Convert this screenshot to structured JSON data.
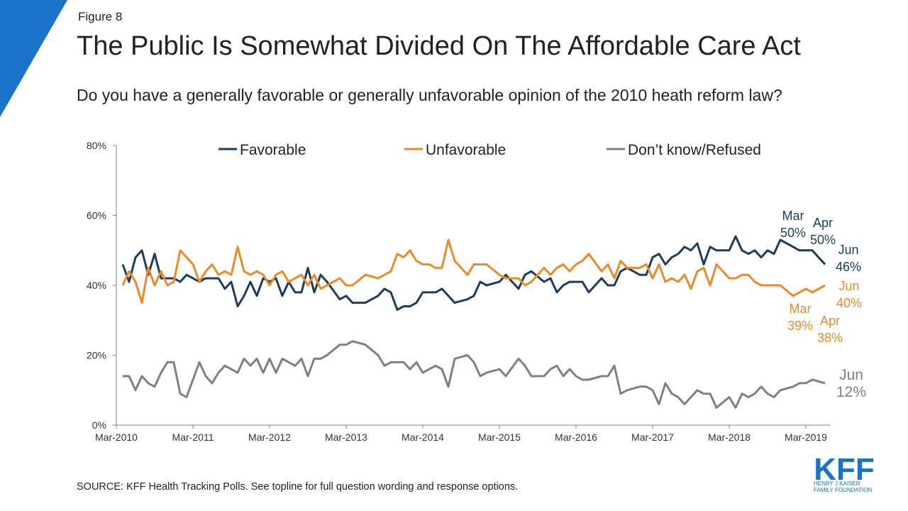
{
  "chart_data": {
    "type": "line",
    "figure_label": "Figure 8",
    "title": "The Public Is Somewhat Divided On The Affordable Care Act",
    "subtitle": "Do you have a generally favorable or generally unfavorable opinion of the 2010 heath reform law?",
    "source": "SOURCE: KFF Health Tracking Polls. See topline for full question wording and response options.",
    "logo": {
      "name": "KFF",
      "line1": "HENRY J KAISER",
      "line2": "FAMILY FOUNDATION"
    },
    "x": [
      "2010-04",
      "2010-05",
      "2010-06",
      "2010-07",
      "2010-08",
      "2010-09",
      "2010-10",
      "2010-11",
      "2010-12",
      "2011-01",
      "2011-02",
      "2011-03",
      "2011-04",
      "2011-05",
      "2011-06",
      "2011-07",
      "2011-08",
      "2011-09",
      "2011-10",
      "2011-11",
      "2011-12",
      "2012-01",
      "2012-02",
      "2012-03",
      "2012-04",
      "2012-05",
      "2012-06",
      "2012-07",
      "2012-08",
      "2012-09",
      "2012-10",
      "2012-11",
      "2012-12",
      "2013-02",
      "2013-03",
      "2013-04",
      "2013-06",
      "2013-08",
      "2013-09",
      "2013-10",
      "2013-11",
      "2013-12",
      "2014-01",
      "2014-02",
      "2014-03",
      "2014-04",
      "2014-05",
      "2014-06",
      "2014-07",
      "2014-08",
      "2014-10",
      "2014-11",
      "2014-12",
      "2015-01",
      "2015-03",
      "2015-04",
      "2015-06",
      "2015-07",
      "2015-08",
      "2015-10",
      "2015-11",
      "2015-12",
      "2016-01",
      "2016-02",
      "2016-03",
      "2016-04",
      "2016-05",
      "2016-07",
      "2016-08",
      "2016-09",
      "2016-10",
      "2016-11",
      "2017-01",
      "2017-02",
      "2017-03",
      "2017-04",
      "2017-05",
      "2017-06",
      "2017-07",
      "2017-08",
      "2017-09",
      "2017-10",
      "2017-11",
      "2017-12",
      "2018-01",
      "2018-03",
      "2018-04",
      "2018-05",
      "2018-06",
      "2018-07",
      "2018-08",
      "2018-09",
      "2018-10",
      "2018-11",
      "2019-01",
      "2019-02",
      "2019-03",
      "2019-04",
      "2019-06"
    ],
    "xlim": [
      "2010-03",
      "2019-06"
    ],
    "xticks": [
      {
        "value": "2010-03",
        "label": "Mar-2010"
      },
      {
        "value": "2011-03",
        "label": "Mar-2011"
      },
      {
        "value": "2012-03",
        "label": "Mar-2012"
      },
      {
        "value": "2013-03",
        "label": "Mar-2013"
      },
      {
        "value": "2014-03",
        "label": "Mar-2014"
      },
      {
        "value": "2015-03",
        "label": "Mar-2015"
      },
      {
        "value": "2016-03",
        "label": "Mar-2016"
      },
      {
        "value": "2017-03",
        "label": "Mar-2017"
      },
      {
        "value": "2018-03",
        "label": "Mar-2018"
      },
      {
        "value": "2019-03",
        "label": "Mar-2019"
      }
    ],
    "ylim": [
      0,
      80
    ],
    "yticks": [
      {
        "value": 0,
        "label": "0%"
      },
      {
        "value": 20,
        "label": "20%"
      },
      {
        "value": 40,
        "label": "40%"
      },
      {
        "value": 60,
        "label": "60%"
      },
      {
        "value": 80,
        "label": "80%"
      }
    ],
    "series": [
      {
        "name": "Favorable",
        "color": "#1c3d5e",
        "values": [
          46,
          41,
          48,
          50,
          43,
          49,
          42,
          42,
          42,
          41,
          43,
          42,
          41,
          42,
          42,
          42,
          39,
          41,
          34,
          37,
          41,
          37,
          42,
          41,
          42,
          37,
          41,
          38,
          38,
          45,
          38,
          43,
          41,
          36,
          37,
          35,
          35,
          37,
          39,
          38,
          33,
          34,
          34,
          35,
          38,
          38,
          38,
          39,
          37,
          35,
          36,
          37,
          41,
          40,
          41,
          43,
          39,
          43,
          44,
          41,
          42,
          38,
          40,
          41,
          41,
          41,
          38,
          42,
          40,
          40,
          44,
          45,
          43,
          43,
          48,
          49,
          46,
          48,
          49,
          51,
          50,
          52,
          46,
          51,
          50,
          50,
          54,
          50,
          49,
          50,
          48,
          50,
          49,
          53,
          51,
          50,
          50,
          50,
          46
        ]
      },
      {
        "name": "Unfavorable",
        "color": "#ec8a28",
        "values": [
          40,
          44,
          41,
          35,
          45,
          40,
          44,
          40,
          41,
          50,
          48,
          46,
          41,
          44,
          46,
          43,
          44,
          43,
          51,
          44,
          43,
          44,
          43,
          40,
          43,
          44,
          41,
          42,
          43,
          40,
          43,
          39,
          40,
          42,
          40,
          40,
          43,
          42,
          43,
          44,
          49,
          48,
          50,
          47,
          46,
          46,
          45,
          45,
          53,
          47,
          43,
          46,
          46,
          46,
          43,
          42,
          42,
          40,
          41,
          45,
          43,
          45,
          46,
          44,
          46,
          47,
          49,
          44,
          46,
          42,
          47,
          45,
          45,
          46,
          42,
          46,
          41,
          42,
          41,
          43,
          39,
          44,
          45,
          40,
          46,
          42,
          42,
          43,
          43,
          41,
          40,
          40,
          40,
          40,
          37,
          38,
          39,
          38,
          40
        ]
      },
      {
        "name": "Don’t know/Refused",
        "color": "#808080",
        "values": [
          14,
          14,
          10,
          14,
          12,
          11,
          15,
          18,
          18,
          9,
          8,
          13,
          18,
          14,
          12,
          15,
          17,
          16,
          15,
          19,
          17,
          19,
          15,
          19,
          15,
          19,
          18,
          17,
          19,
          14,
          19,
          19,
          20,
          23,
          23,
          24,
          23,
          20,
          17,
          18,
          18,
          18,
          16,
          18,
          15,
          16,
          17,
          16,
          11,
          19,
          20,
          18,
          14,
          15,
          16,
          14,
          19,
          17,
          14,
          14,
          16,
          17,
          14,
          16,
          14,
          13,
          13,
          14,
          14,
          17,
          9,
          10,
          11,
          11,
          10,
          6,
          12,
          9,
          8,
          6,
          8,
          10,
          9,
          9,
          5,
          8,
          5,
          9,
          8,
          9,
          11,
          9,
          8,
          10,
          11,
          12,
          12,
          13,
          12
        ]
      }
    ],
    "annotations": [
      {
        "lines": [
          "Mar",
          "50%"
        ]
      },
      {
        "lines": [
          "Apr",
          "50%"
        ]
      },
      {
        "lines": [
          "Jun",
          "46%"
        ]
      },
      {
        "lines": [
          "Jun",
          "40%"
        ]
      },
      {
        "lines": [
          "Mar",
          "39%"
        ]
      },
      {
        "lines": [
          "Apr",
          "38%"
        ]
      },
      {
        "lines": [
          "Jun",
          "12%"
        ]
      }
    ],
    "grid": false,
    "legend": "top"
  }
}
